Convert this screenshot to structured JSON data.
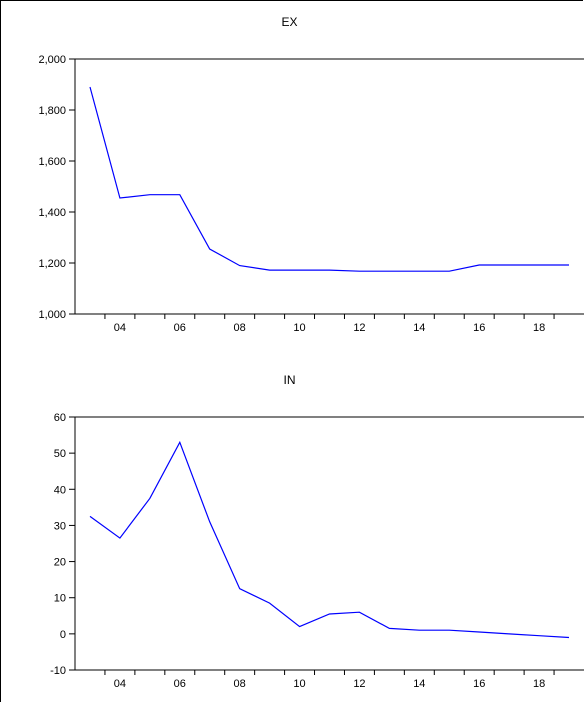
{
  "chart_data": [
    {
      "type": "line",
      "title": "EX",
      "xlabel": "",
      "ylabel": "",
      "x": [
        2003,
        2004,
        2005,
        2006,
        2007,
        2008,
        2009,
        2010,
        2011,
        2012,
        2013,
        2014,
        2015,
        2016,
        2017,
        2018,
        2019
      ],
      "x_tick_values": [
        2004,
        2006,
        2008,
        2010,
        2012,
        2014,
        2016,
        2018
      ],
      "x_tick_labels": [
        "04",
        "06",
        "08",
        "10",
        "12",
        "14",
        "16",
        "18"
      ],
      "xlim": [
        2002.5,
        2019.5
      ],
      "ylim": [
        1000,
        2000
      ],
      "y_ticks": [
        1000,
        1200,
        1400,
        1600,
        1800,
        2000
      ],
      "y_tick_labels": [
        "1,000",
        "1,200",
        "1,400",
        "1,600",
        "1,800",
        "2,000"
      ],
      "grid": false,
      "series": [
        {
          "color": "#0000ff",
          "values": [
            1890,
            1455,
            1468,
            1468,
            1255,
            1190,
            1172,
            1172,
            1172,
            1168,
            1168,
            1168,
            1168,
            1192,
            1192,
            1192,
            1192
          ]
        }
      ]
    },
    {
      "type": "line",
      "title": "IN",
      "xlabel": "",
      "ylabel": "",
      "x": [
        2003,
        2004,
        2005,
        2006,
        2007,
        2008,
        2009,
        2010,
        2011,
        2012,
        2013,
        2014,
        2015,
        2016,
        2017,
        2018,
        2019
      ],
      "x_tick_values": [
        2004,
        2006,
        2008,
        2010,
        2012,
        2014,
        2016,
        2018
      ],
      "x_tick_labels": [
        "04",
        "06",
        "08",
        "10",
        "12",
        "14",
        "16",
        "18"
      ],
      "xlim": [
        2002.5,
        2019.5
      ],
      "ylim": [
        -10,
        60
      ],
      "y_ticks": [
        -10,
        0,
        10,
        20,
        30,
        40,
        50,
        60
      ],
      "y_tick_labels": [
        "-10",
        "0",
        "10",
        "20",
        "30",
        "40",
        "50",
        "60"
      ],
      "grid": false,
      "series": [
        {
          "color": "#0000ff",
          "values": [
            32.5,
            26.5,
            37.5,
            53,
            31,
            12.5,
            8.5,
            2,
            5.5,
            6,
            1.5,
            1,
            1,
            0.5,
            0,
            -0.5,
            -1
          ]
        }
      ]
    }
  ]
}
